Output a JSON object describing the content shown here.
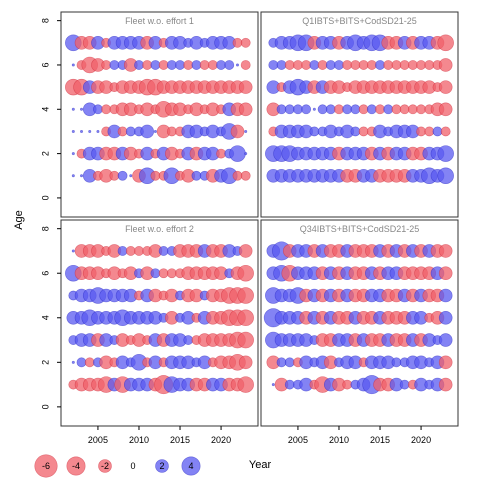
{
  "chart_data": {
    "type": "scatter",
    "subtype": "bubble-residual-panels",
    "xlabel": "Year",
    "ylabel": "Age",
    "xlim": [
      2000.5,
      2024.5
    ],
    "ylim": [
      -0.5,
      8.3
    ],
    "x_ticks": [
      2005,
      2010,
      2015,
      2020
    ],
    "y_ticks": [
      0,
      2,
      4,
      6,
      8
    ],
    "grid": false,
    "legend_position": "bottom-left",
    "colors": {
      "negative": "#f0606a",
      "positive": "#5a5af0",
      "negative_edge": "#cc2030",
      "positive_edge": "#2020c0"
    },
    "legend": {
      "values": [
        -6,
        -4,
        -2,
        0,
        2,
        4
      ],
      "labels": [
        "-6",
        "-4",
        "-2",
        "0",
        "2",
        "4"
      ]
    },
    "panels": [
      {
        "title": "Fleet w.o. effort 1",
        "years": [
          2002,
          2003,
          2004,
          2005,
          2006,
          2007,
          2008,
          2009,
          2010,
          2011,
          2012,
          2013,
          2014,
          2015,
          2016,
          2017,
          2018,
          2019,
          2020,
          2021,
          2022,
          2023
        ],
        "residuals": {
          "1": [
            0,
            0,
            2,
            -1,
            -2,
            -1,
            1,
            0,
            -2,
            3,
            -1,
            -1,
            3,
            -1,
            -2,
            1,
            1,
            -2,
            2,
            3,
            -1,
            -1
          ],
          "2": [
            0,
            -1,
            2,
            2,
            -2,
            -2,
            2,
            -2,
            -1,
            2,
            -1,
            2,
            -2,
            -1,
            2,
            -2,
            2,
            2,
            -1,
            1,
            3,
            0
          ],
          "3": [
            0,
            0,
            0,
            0,
            -1,
            2,
            -1,
            1,
            1,
            2,
            0,
            -2,
            -1,
            -1,
            2,
            2,
            1,
            2,
            1,
            3,
            -2,
            0
          ],
          "4": [
            0,
            0,
            2,
            1,
            -1,
            -1,
            -2,
            -2,
            -1,
            -2,
            -1,
            -3,
            -2,
            -2,
            -1,
            -2,
            -1,
            -2,
            -1,
            2,
            -2,
            -2
          ],
          "5": [
            -3,
            -3,
            2,
            -2,
            -2,
            -1,
            -2,
            -2,
            -2,
            -3,
            -3,
            -2,
            -2,
            -2,
            -2,
            -2,
            -2,
            -2,
            -2,
            -2,
            -2,
            -2
          ],
          "6": [
            0,
            -1,
            -3,
            -2,
            -1,
            1,
            1,
            -2,
            1,
            -1,
            1,
            -1,
            1,
            1,
            -1,
            1,
            -1,
            -1,
            1,
            1,
            0,
            -1
          ],
          "7": [
            3,
            -2,
            -2,
            2,
            -1,
            2,
            2,
            2,
            2,
            -2,
            2,
            -1,
            2,
            2,
            1,
            2,
            1,
            2,
            2,
            2,
            -1,
            -1
          ]
        }
      },
      {
        "title": "Q1IBTS+BITS+CodSD21-25",
        "years": [
          2002,
          2003,
          2004,
          2005,
          2006,
          2007,
          2008,
          2009,
          2010,
          2011,
          2012,
          2013,
          2014,
          2015,
          2016,
          2017,
          2018,
          2019,
          2020,
          2021,
          2022,
          2023
        ],
        "residuals": {
          "1": [
            2,
            2,
            2,
            2,
            2,
            2,
            2,
            2,
            2,
            -2,
            -2,
            2,
            2,
            -2,
            -2,
            -2,
            -2,
            2,
            2,
            3,
            2,
            3
          ],
          "2": [
            3,
            3,
            3,
            2,
            2,
            2,
            2,
            2,
            -2,
            2,
            2,
            2,
            -2,
            2,
            -2,
            2,
            2,
            -2,
            -2,
            2,
            2,
            3
          ],
          "3": [
            -1,
            2,
            2,
            2,
            2,
            1,
            1,
            2,
            1,
            2,
            1,
            -1,
            -1,
            2,
            1,
            2,
            2,
            2,
            -1,
            -1,
            1,
            -1
          ],
          "4": [
            -2,
            1,
            1,
            1,
            1,
            0,
            1,
            1,
            -1,
            1,
            1,
            -1,
            1,
            -1,
            1,
            -1,
            -1,
            -1,
            -1,
            -1,
            -2,
            -2
          ],
          "5": [
            2,
            -1,
            2,
            3,
            2,
            -2,
            2,
            -2,
            -2,
            -1,
            -2,
            -2,
            -2,
            -2,
            -2,
            -2,
            -2,
            -2,
            -2,
            -2,
            -1,
            -2
          ],
          "6": [
            1,
            1,
            -1,
            -1,
            -1,
            1,
            -1,
            1,
            1,
            -1,
            -1,
            -1,
            -1,
            1,
            -1,
            -1,
            -1,
            -1,
            -1,
            -1,
            -1,
            -2
          ],
          "7": [
            1,
            2,
            2,
            3,
            3,
            -2,
            2,
            2,
            -2,
            2,
            3,
            2,
            3,
            3,
            -2,
            -2,
            2,
            -2,
            2,
            2,
            -2,
            -3
          ]
        }
      },
      {
        "title": "Fleet w.o. effort 2",
        "years": [
          2002,
          2003,
          2004,
          2005,
          2006,
          2007,
          2008,
          2009,
          2010,
          2011,
          2012,
          2013,
          2014,
          2015,
          2016,
          2017,
          2018,
          2019,
          2020,
          2021,
          2022,
          2023
        ],
        "residuals": {
          "1": [
            -1,
            -2,
            -2,
            -2,
            -3,
            2,
            -3,
            2,
            2,
            2,
            -2,
            -4,
            3,
            2,
            2,
            -2,
            -2,
            2,
            2,
            -2,
            -2,
            -3
          ],
          "2": [
            0,
            1,
            -1,
            1,
            -2,
            -1,
            2,
            1,
            3,
            -1,
            2,
            -1,
            2,
            2,
            2,
            1,
            2,
            -1,
            -2,
            -2,
            -3,
            -2
          ],
          "3": [
            1,
            2,
            2,
            -2,
            2,
            1,
            -2,
            -1,
            -2,
            -1,
            2,
            -2,
            2,
            2,
            1,
            -1,
            -2,
            -2,
            -2,
            -2,
            -3,
            -3
          ],
          "4": [
            2,
            2,
            3,
            2,
            2,
            2,
            3,
            2,
            2,
            2,
            2,
            1,
            -2,
            1,
            2,
            -1,
            2,
            -2,
            -2,
            -3,
            -3,
            -3
          ],
          "5": [
            1,
            2,
            2,
            3,
            2,
            2,
            2,
            2,
            -1,
            2,
            -2,
            -1,
            -2,
            1,
            -2,
            -2,
            1,
            -2,
            -2,
            -3,
            -3,
            -3
          ],
          "6": [
            3,
            -2,
            -2,
            -2,
            -1,
            -2,
            -1,
            -2,
            1,
            -2,
            1,
            -1,
            -1,
            -1,
            -2,
            -2,
            -2,
            -2,
            -2,
            1,
            -2,
            -3
          ],
          "7": [
            0,
            -2,
            -2,
            -2,
            -1,
            -2,
            1,
            -1,
            -1,
            -1,
            -2,
            1,
            1,
            -2,
            -2,
            -2,
            2,
            -2,
            -2,
            2,
            1,
            -2
          ]
        }
      },
      {
        "title": "Q34IBTS+BITS+CodSD21-25",
        "years": [
          2002,
          2003,
          2004,
          2005,
          2006,
          2007,
          2008,
          2009,
          2010,
          2011,
          2012,
          2013,
          2014,
          2015,
          2016,
          2017,
          2018,
          2019,
          2020,
          2021,
          2022,
          2023
        ],
        "residuals": {
          "1": [
            0,
            -2,
            1,
            1,
            2,
            -1,
            -3,
            2,
            -2,
            -1,
            1,
            2,
            4,
            -2,
            -2,
            2,
            1,
            -1,
            2,
            1,
            2,
            -2
          ],
          "2": [
            -2,
            1,
            1,
            -1,
            2,
            1,
            2,
            -2,
            1,
            2,
            2,
            -1,
            2,
            2,
            2,
            1,
            1,
            2,
            2,
            1,
            2,
            -2
          ],
          "3": [
            3,
            2,
            2,
            2,
            2,
            1,
            -2,
            -2,
            2,
            2,
            -2,
            2,
            -2,
            -2,
            2,
            -2,
            -2,
            2,
            -2,
            2,
            1,
            2
          ],
          "4": [
            4,
            2,
            2,
            2,
            -2,
            2,
            -2,
            2,
            -2,
            -2,
            2,
            -2,
            -2,
            2,
            -2,
            -2,
            -2,
            2,
            2,
            -1,
            -2,
            2
          ],
          "5": [
            3,
            2,
            2,
            3,
            -2,
            2,
            -2,
            2,
            -2,
            2,
            -2,
            -2,
            2,
            2,
            -2,
            -2,
            2,
            -2,
            2,
            -2,
            -2,
            2
          ],
          "6": [
            2,
            3,
            -3,
            2,
            2,
            2,
            -2,
            2,
            -2,
            2,
            -2,
            -2,
            2,
            -2,
            2,
            2,
            -2,
            -2,
            -2,
            -2,
            2,
            -2
          ],
          "7": [
            2,
            4,
            -2,
            2,
            2,
            -2,
            2,
            -2,
            -2,
            2,
            -2,
            -2,
            -2,
            2,
            -2,
            2,
            -2,
            2,
            -2,
            2,
            -2,
            -2
          ]
        }
      }
    ]
  }
}
